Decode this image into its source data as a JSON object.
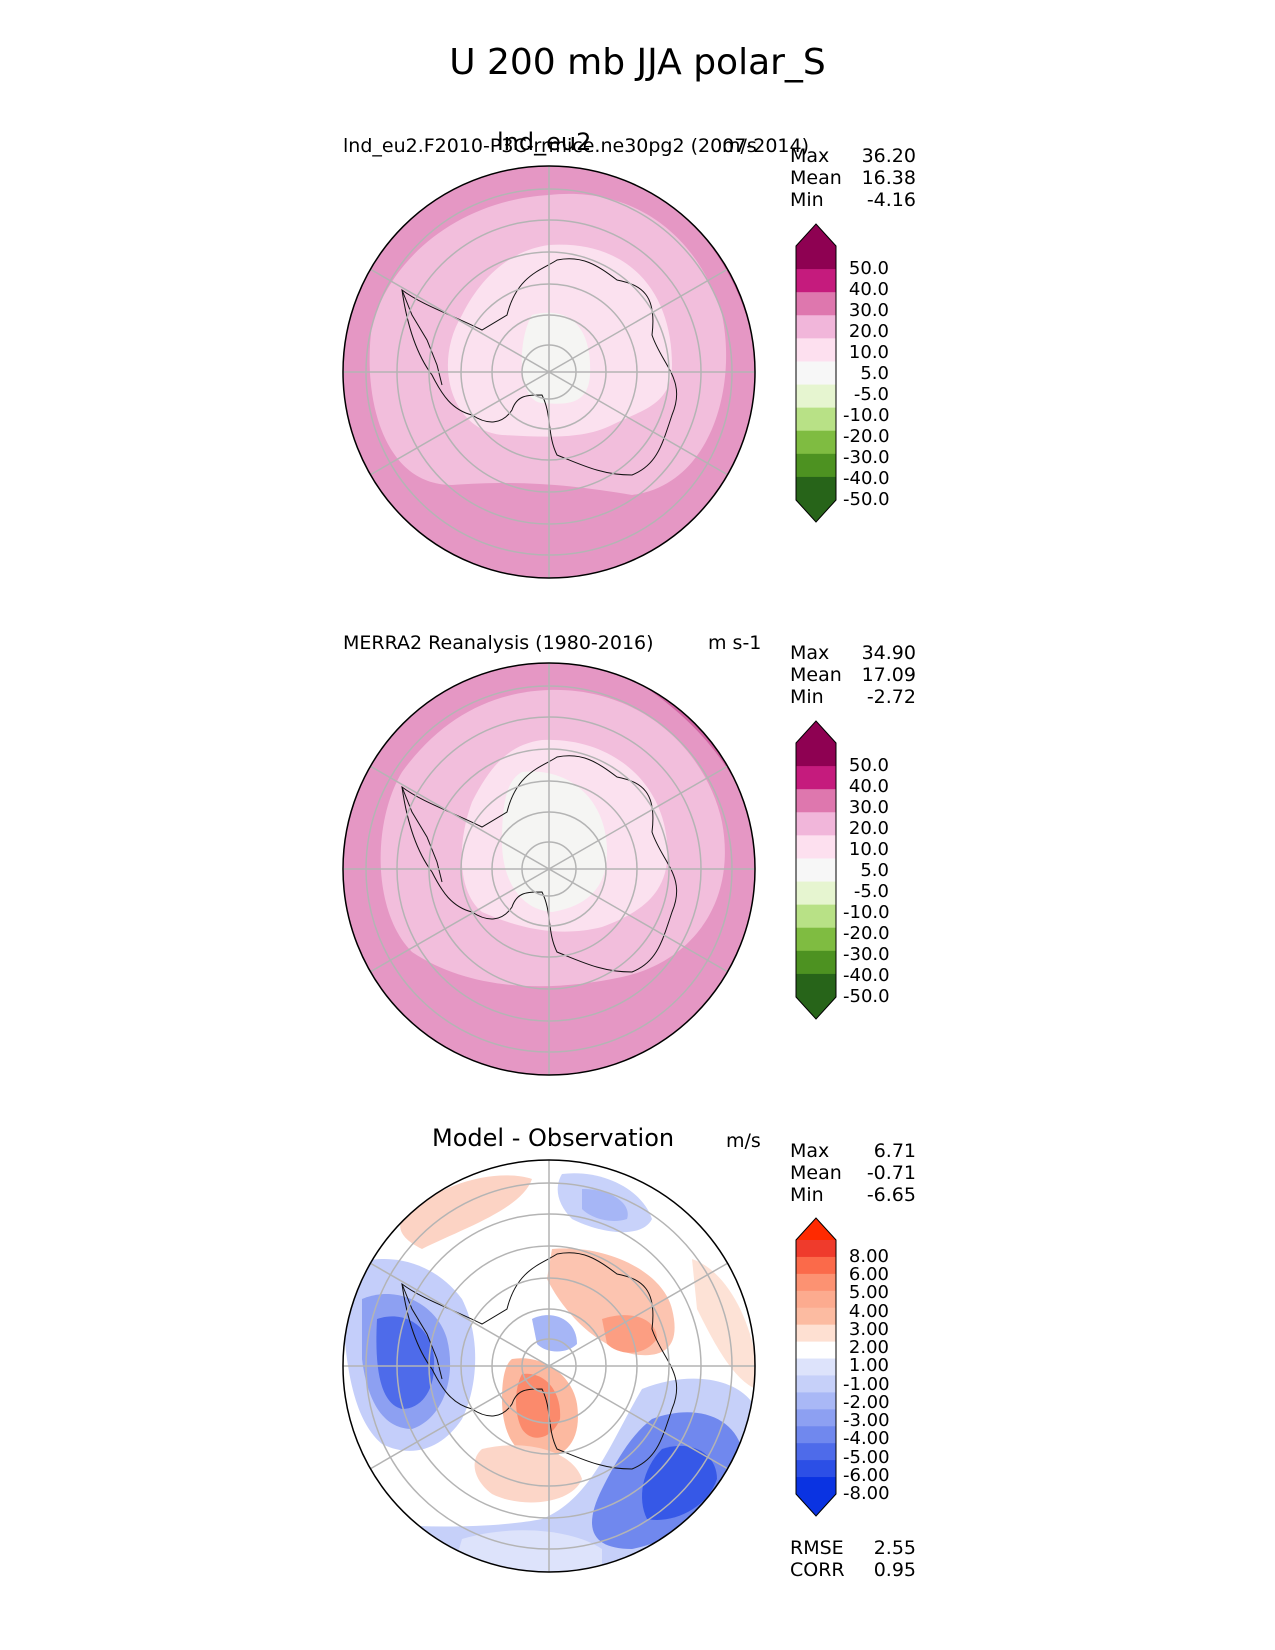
{
  "chart_data": {
    "suptitle": "U 200 mb JJA polar_S",
    "panels": [
      {
        "id": "test",
        "type": "contourf-map",
        "projection": "south-polar-stereographic",
        "title": "lnd_eu2",
        "left_title": "lnd_eu2.F2010-P3C-rrmice.ne30pg2 (2007-2014)",
        "units": "m/s",
        "stats": [
          {
            "label": "Max",
            "value": "36.20"
          },
          {
            "label": "Mean",
            "value": "16.38"
          },
          {
            "label": "Min",
            "value": "-4.16"
          }
        ],
        "colorbar": {
          "ticks": [
            "50.0",
            "40.0",
            "30.0",
            "20.0",
            "10.0",
            "5.0",
            "-5.0",
            "-10.0",
            "-20.0",
            "-30.0",
            "-40.0",
            "-50.0"
          ],
          "colors": [
            "#8e0152",
            "#c51b7d",
            "#de77ae",
            "#f1b6da",
            "#fde0ef",
            "#f7f7f7",
            "#e6f5d0",
            "#b8e186",
            "#7fbc41",
            "#4d9221",
            "#276419"
          ],
          "extend_top": "#8e0152",
          "extend_bottom": "#276419"
        }
      },
      {
        "id": "reference",
        "type": "contourf-map",
        "projection": "south-polar-stereographic",
        "title": "",
        "left_title": "MERRA2 Reanalysis (1980-2016)",
        "units": "m s-1",
        "stats": [
          {
            "label": "Max",
            "value": "34.90"
          },
          {
            "label": "Mean",
            "value": "17.09"
          },
          {
            "label": "Min",
            "value": "-2.72"
          }
        ],
        "colorbar": {
          "ticks": [
            "50.0",
            "40.0",
            "30.0",
            "20.0",
            "10.0",
            "5.0",
            "-5.0",
            "-10.0",
            "-20.0",
            "-30.0",
            "-40.0",
            "-50.0"
          ],
          "colors": [
            "#8e0152",
            "#c51b7d",
            "#de77ae",
            "#f1b6da",
            "#fde0ef",
            "#f7f7f7",
            "#e6f5d0",
            "#b8e186",
            "#7fbc41",
            "#4d9221",
            "#276419"
          ],
          "extend_top": "#8e0152",
          "extend_bottom": "#276419"
        }
      },
      {
        "id": "difference",
        "type": "contourf-map",
        "projection": "south-polar-stereographic",
        "title": "Model - Observation",
        "left_title": "",
        "units": "m/s",
        "stats": [
          {
            "label": "Max",
            "value": "6.71"
          },
          {
            "label": "Mean",
            "value": "-0.71"
          },
          {
            "label": "Min",
            "value": "-6.65"
          }
        ],
        "extra_stats": [
          {
            "label": "RMSE",
            "value": "2.55"
          },
          {
            "label": "CORR",
            "value": "0.95"
          }
        ],
        "colorbar": {
          "ticks": [
            "8.00",
            "6.00",
            "5.00",
            "4.00",
            "3.00",
            "2.00",
            "1.00",
            "-1.00",
            "-2.00",
            "-3.00",
            "-4.00",
            "-5.00",
            "-6.00",
            "-8.00"
          ],
          "colors": [
            "#ef3b2c",
            "#fb6a4a",
            "#fc9272",
            "#fcab8f",
            "#fcbba1",
            "#fee0d2",
            "#ffffff",
            "#dde3fb",
            "#c6d0f9",
            "#a9b8f6",
            "#8da0f2",
            "#7088ee",
            "#4e6bea",
            "#2c4fe6",
            "#0a33e2"
          ],
          "extend_top": "#ff2a00",
          "extend_bottom": "#0a33e2"
        }
      }
    ]
  }
}
